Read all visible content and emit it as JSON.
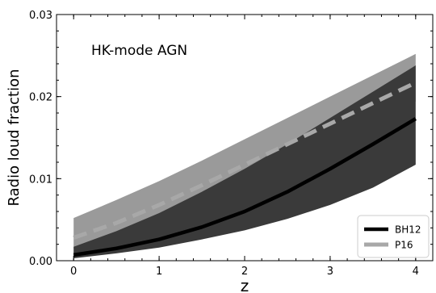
{
  "chart_data": {
    "type": "line",
    "title": "",
    "annotation": "HK-mode AGN",
    "xlabel": "z",
    "ylabel": "Radio loud fraction",
    "xlim": [
      -0.2,
      4.2
    ],
    "ylim": [
      0.0,
      0.03
    ],
    "xticks": [
      0,
      1,
      2,
      3,
      4
    ],
    "xtick_labels": [
      "0",
      "1",
      "2",
      "3",
      "4"
    ],
    "yticks": [
      0.0,
      0.01,
      0.02,
      0.03
    ],
    "ytick_labels": [
      "0.00",
      "0.01",
      "0.02",
      "0.03"
    ],
    "x": [
      0,
      0.5,
      1,
      1.5,
      2,
      2.5,
      3,
      3.5,
      4
    ],
    "series": [
      {
        "name": "BH12",
        "color": "#000000",
        "style": "solid",
        "values": [
          0.0007,
          0.0015,
          0.0026,
          0.0041,
          0.006,
          0.0084,
          0.0112,
          0.0142,
          0.0173
        ],
        "band_lower": [
          0.0003,
          0.0009,
          0.0016,
          0.0026,
          0.0037,
          0.0051,
          0.0068,
          0.0089,
          0.0117
        ],
        "band_upper": [
          0.0017,
          0.0036,
          0.0058,
          0.0084,
          0.0112,
          0.0142,
          0.0174,
          0.0206,
          0.0238
        ],
        "band_color": "#3a3a3a"
      },
      {
        "name": "P16",
        "color": "#a8a8a8",
        "style": "dashed",
        "values": [
          0.0028,
          0.0046,
          0.0068,
          0.0092,
          0.0117,
          0.0142,
          0.0167,
          0.0192,
          0.0217
        ],
        "band_lower": [
          0.0015,
          0.0028,
          0.0046,
          0.0067,
          0.0091,
          0.0115,
          0.0142,
          0.0168,
          0.0194
        ],
        "band_upper": [
          0.0052,
          0.0074,
          0.0097,
          0.0122,
          0.0148,
          0.0174,
          0.02,
          0.0226,
          0.0252
        ],
        "band_color": "#9a9a9a"
      }
    ],
    "legend_position": "bottom-right",
    "grid": false
  }
}
